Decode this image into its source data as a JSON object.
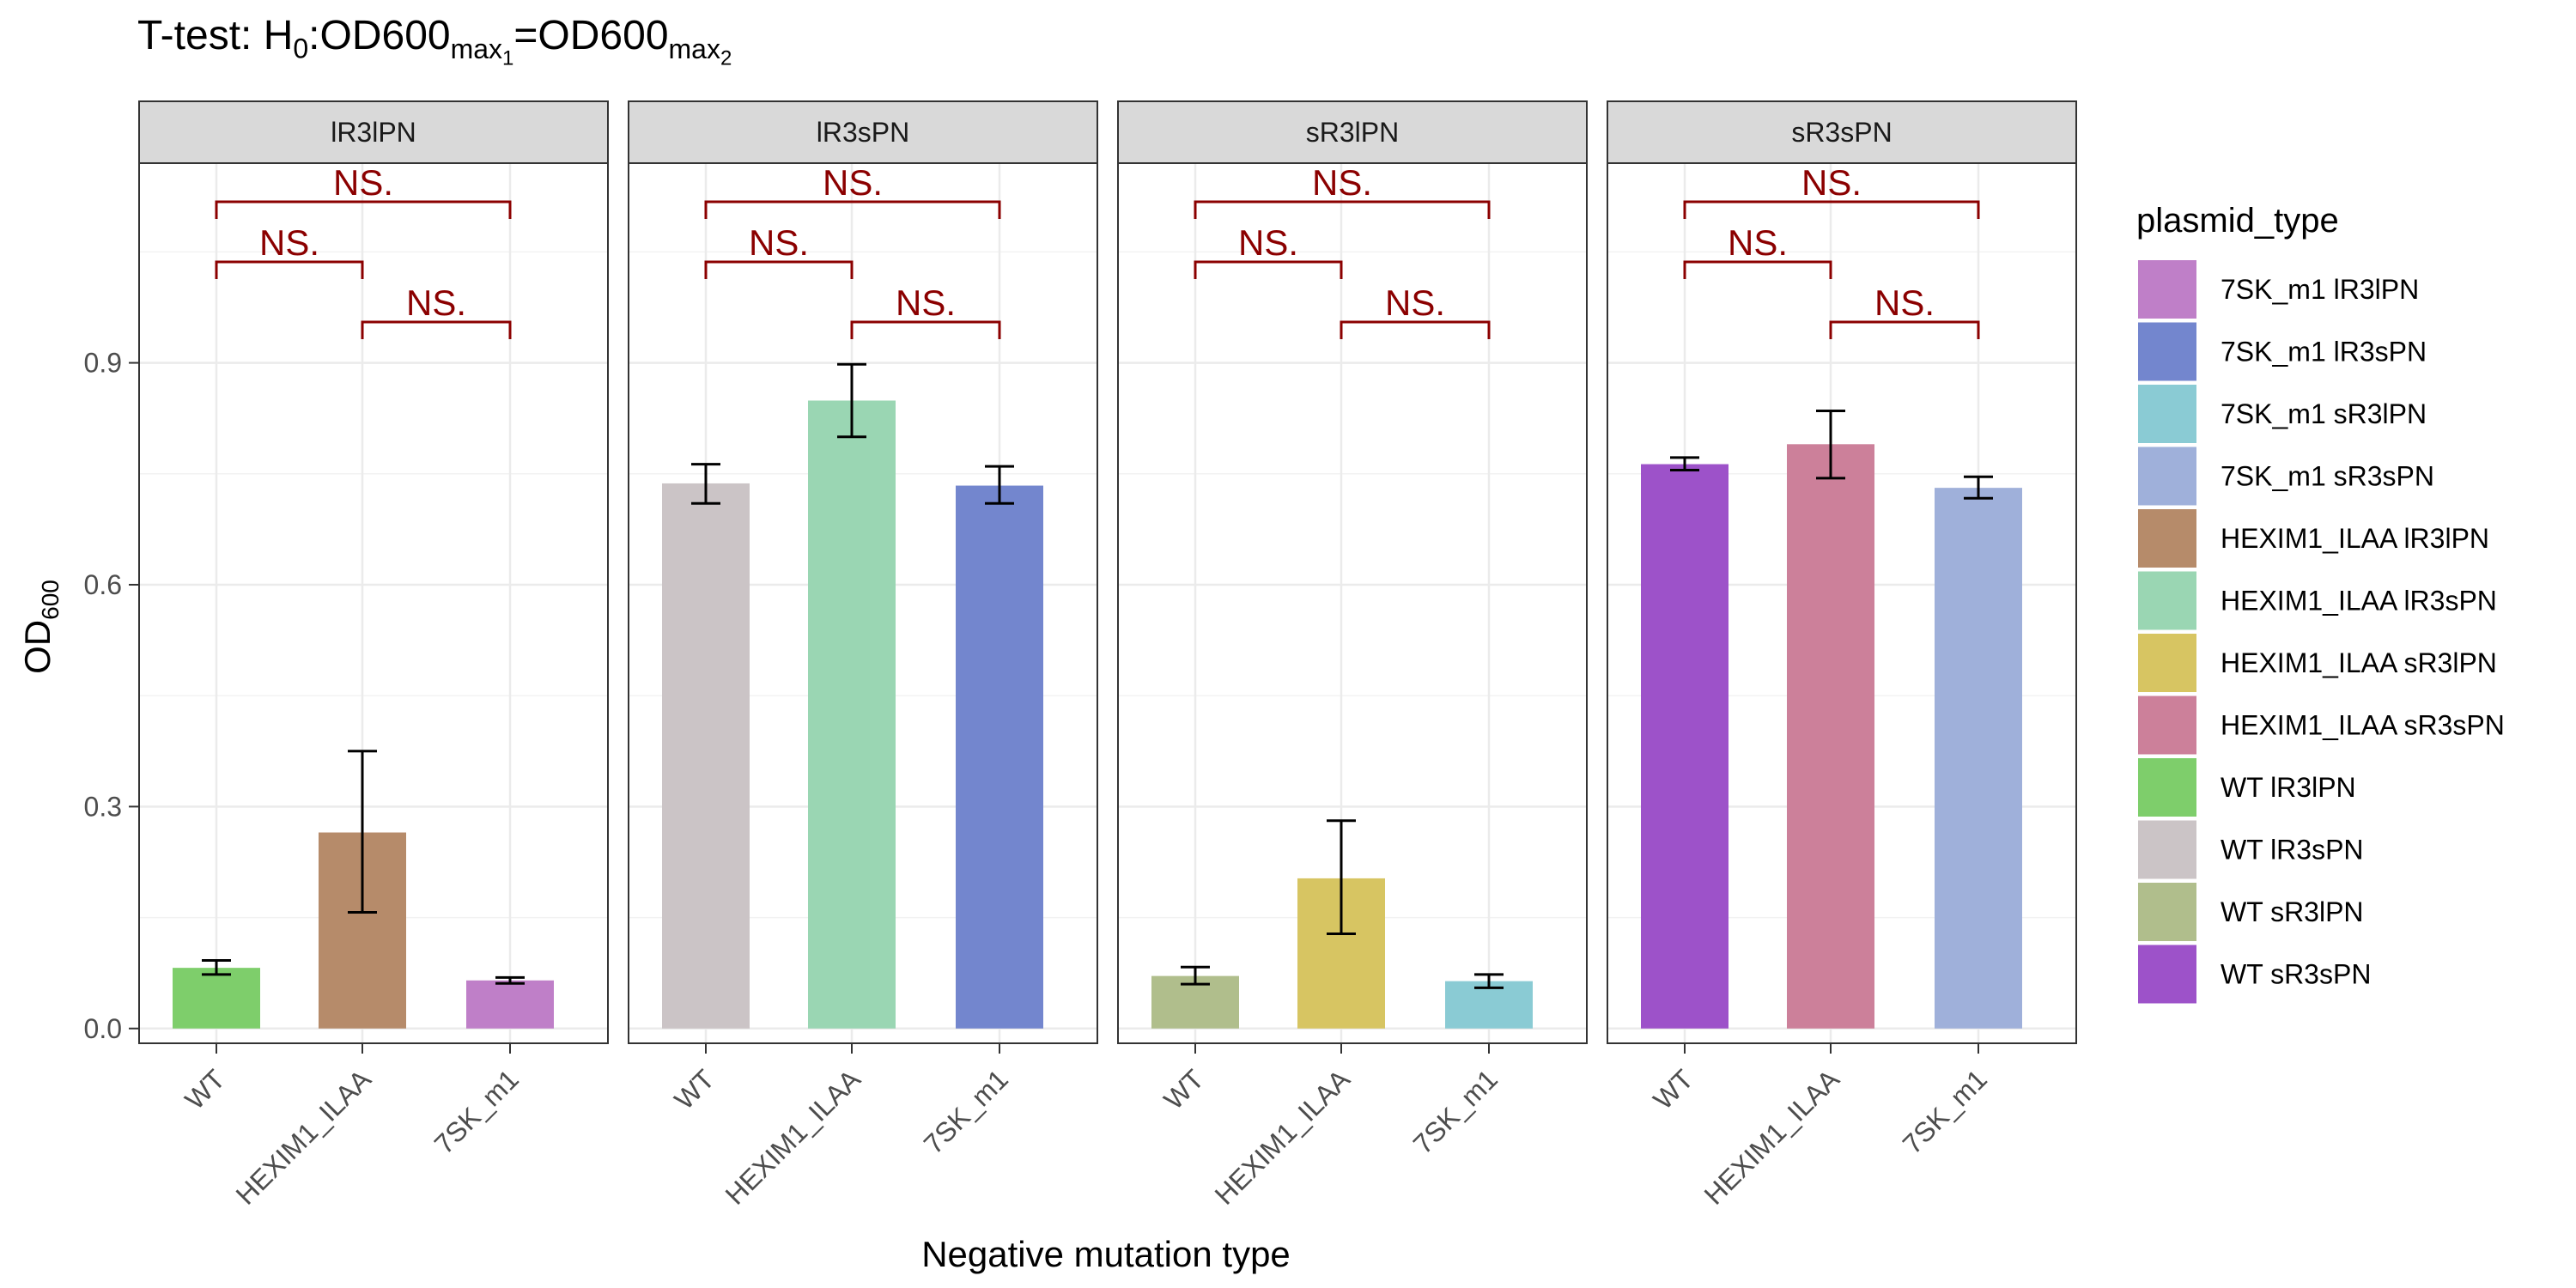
{
  "chart_data": {
    "type": "bar",
    "title": {
      "prefix": "T-test: H",
      "h_sub": "0",
      "mid1": ":OD600",
      "max_sub": "max",
      "idx1": "1",
      "eq": "=OD600",
      "idx2": "2"
    },
    "xlabel": "Negative mutation type",
    "ylabel": {
      "main": "OD",
      "sub": "600"
    },
    "ylim": [
      -0.02,
      1.17
    ],
    "yticks": [
      0.0,
      0.3,
      0.6,
      0.9
    ],
    "ytick_labels": [
      "0.0",
      "0.3",
      "0.6",
      "0.9"
    ],
    "categories": [
      "WT",
      "HEXIM1_ILAA",
      "7SK_m1"
    ],
    "grid": true,
    "legend_position": "right",
    "legend": {
      "title": "plasmid_type",
      "items": [
        {
          "label": "7SK_m1 lR3lPN",
          "color": "#BF7FC8"
        },
        {
          "label": "7SK_m1 lR3sPN",
          "color": "#7386CE"
        },
        {
          "label": "7SK_m1 sR3lPN",
          "color": "#8ACBD4"
        },
        {
          "label": "7SK_m1 sR3sPN",
          "color": "#9FB0DA"
        },
        {
          "label": "HEXIM1_ILAA lR3lPN",
          "color": "#B68B6A"
        },
        {
          "label": "HEXIM1_ILAA lR3sPN",
          "color": "#9AD6B3"
        },
        {
          "label": "HEXIM1_ILAA sR3lPN",
          "color": "#D7C562"
        },
        {
          "label": "HEXIM1_ILAA sR3sPN",
          "color": "#CC809A"
        },
        {
          "label": "WT lR3lPN",
          "color": "#7ECE6B"
        },
        {
          "label": "WT lR3sPN",
          "color": "#CBC4C6"
        },
        {
          "label": "WT sR3lPN",
          "color": "#B0BE8C"
        },
        {
          "label": "WT sR3sPN",
          "color": "#9D52C9"
        }
      ]
    },
    "significance_color": "#8B0000",
    "panels": [
      {
        "name": "lR3lPN",
        "bars": [
          {
            "category": "WT",
            "value": 0.082,
            "err_low": 0.073,
            "err_high": 0.092,
            "color": "#7ECE6B"
          },
          {
            "category": "HEXIM1_ILAA",
            "value": 0.265,
            "err_low": 0.157,
            "err_high": 0.375,
            "color": "#B68B6A"
          },
          {
            "category": "7SK_m1",
            "value": 0.065,
            "err_low": 0.061,
            "err_high": 0.069,
            "color": "#BF7FC8"
          }
        ],
        "comparisons": [
          {
            "from": 0,
            "to": 2,
            "level": 2,
            "label": "NS."
          },
          {
            "from": 0,
            "to": 1,
            "level": 1,
            "label": "NS."
          },
          {
            "from": 1,
            "to": 2,
            "level": 0,
            "label": "NS."
          }
        ]
      },
      {
        "name": "lR3sPN",
        "bars": [
          {
            "category": "WT",
            "value": 0.737,
            "err_low": 0.71,
            "err_high": 0.763,
            "color": "#CBC4C6"
          },
          {
            "category": "HEXIM1_ILAA",
            "value": 0.849,
            "err_low": 0.8,
            "err_high": 0.898,
            "color": "#9AD6B3"
          },
          {
            "category": "7SK_m1",
            "value": 0.734,
            "err_low": 0.71,
            "err_high": 0.76,
            "color": "#7386CE"
          }
        ],
        "comparisons": [
          {
            "from": 0,
            "to": 2,
            "level": 2,
            "label": "NS."
          },
          {
            "from": 0,
            "to": 1,
            "level": 1,
            "label": "NS."
          },
          {
            "from": 1,
            "to": 2,
            "level": 0,
            "label": "NS."
          }
        ]
      },
      {
        "name": "sR3lPN",
        "bars": [
          {
            "category": "WT",
            "value": 0.071,
            "err_low": 0.06,
            "err_high": 0.083,
            "color": "#B0BE8C"
          },
          {
            "category": "HEXIM1_ILAA",
            "value": 0.203,
            "err_low": 0.128,
            "err_high": 0.281,
            "color": "#D7C562"
          },
          {
            "category": "7SK_m1",
            "value": 0.064,
            "err_low": 0.055,
            "err_high": 0.073,
            "color": "#8ACBD4"
          }
        ],
        "comparisons": [
          {
            "from": 0,
            "to": 2,
            "level": 2,
            "label": "NS."
          },
          {
            "from": 0,
            "to": 1,
            "level": 1,
            "label": "NS."
          },
          {
            "from": 1,
            "to": 2,
            "level": 0,
            "label": "NS."
          }
        ]
      },
      {
        "name": "sR3sPN",
        "bars": [
          {
            "category": "WT",
            "value": 0.763,
            "err_low": 0.755,
            "err_high": 0.772,
            "color": "#9D52C9"
          },
          {
            "category": "HEXIM1_ILAA",
            "value": 0.79,
            "err_low": 0.744,
            "err_high": 0.835,
            "color": "#CC809A"
          },
          {
            "category": "7SK_m1",
            "value": 0.731,
            "err_low": 0.717,
            "err_high": 0.746,
            "color": "#9FB0DA"
          }
        ],
        "comparisons": [
          {
            "from": 0,
            "to": 2,
            "level": 2,
            "label": "NS."
          },
          {
            "from": 0,
            "to": 1,
            "level": 1,
            "label": "NS."
          },
          {
            "from": 1,
            "to": 2,
            "level": 0,
            "label": "NS."
          }
        ]
      }
    ]
  }
}
